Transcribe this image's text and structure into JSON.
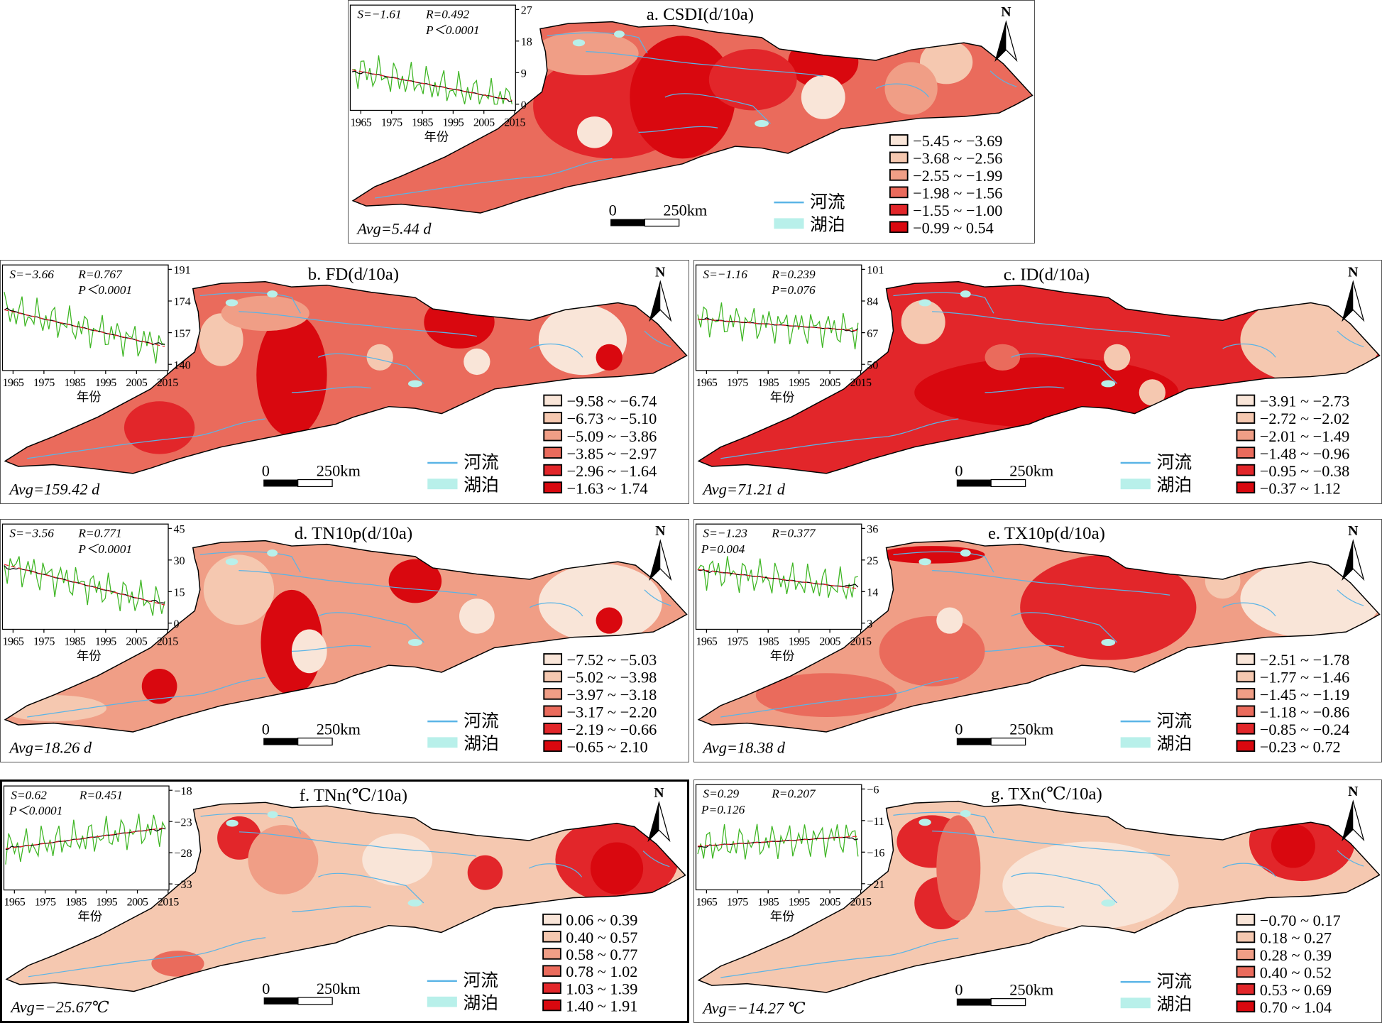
{
  "common": {
    "x_ticks": [
      "1965",
      "1975",
      "1985",
      "1995",
      "2005",
      "2015"
    ],
    "x_label": "年份",
    "north_label": "N",
    "scale_zero": "0",
    "scale_label": "250km",
    "river_label": "河流",
    "lake_label": "湖泊",
    "colors": [
      "#f9e5d8",
      "#f5c8b0",
      "#f09e86",
      "#ea6b5c",
      "#e2262a",
      "#d9080f"
    ],
    "river_color": "#5ab4e6",
    "lake_color": "#b8f0ea"
  },
  "panels": [
    {
      "id": "a",
      "title": "a.  CSDI(d/10a)",
      "S": "S=−1.61",
      "R": "R=0.492",
      "P": "P＜0.0001",
      "y_ticks": [
        "27",
        "18",
        "9",
        "0"
      ],
      "y_range": [
        0,
        27
      ],
      "series_mean": 5.44,
      "trend_per_decade": -1.61,
      "legend": [
        "−5.45 ~ −3.69",
        "−3.68 ~ −2.56",
        "−2.55 ~ −1.99",
        "−1.98 ~ −1.56",
        "−1.55 ~ −1.00",
        "−0.99 ~ 0.54"
      ],
      "avg": "Avg=5.44 d"
    },
    {
      "id": "b",
      "title": "b.  FD(d/10a)",
      "S": "S=−3.66",
      "R": "R=0.767",
      "P": "P＜0.0001",
      "y_ticks": [
        "191",
        "174",
        "157",
        "140"
      ],
      "y_range": [
        140,
        191
      ],
      "series_mean": 159.42,
      "trend_per_decade": -3.66,
      "legend": [
        "−9.58 ~ −6.74",
        "−6.73 ~ −5.10",
        "−5.09 ~ −3.86",
        "−3.85 ~ −2.97",
        "−2.96 ~ −1.64",
        "−1.63 ~ 1.74"
      ],
      "avg": "Avg=159.42 d"
    },
    {
      "id": "c",
      "title": "c.  ID(d/10a)",
      "S": "S=−1.16",
      "R": "R=0.239",
      "P": "P=0.076",
      "y_ticks": [
        "101",
        "84",
        "67",
        "50"
      ],
      "y_range": [
        50,
        101
      ],
      "series_mean": 71.21,
      "trend_per_decade": -1.16,
      "legend": [
        "−3.91 ~ −2.73",
        "−2.72 ~ −2.02",
        "−2.01 ~ −1.49",
        "−1.48 ~ −0.96",
        "−0.95 ~ −0.38",
        "−0.37 ~ 1.12"
      ],
      "avg": "Avg=71.21 d"
    },
    {
      "id": "d",
      "title": "d.  TN10p(d/10a)",
      "S": "S=−3.56",
      "R": "R=0.771",
      "P": "P＜0.0001",
      "y_ticks": [
        "45",
        "30",
        "15",
        "0"
      ],
      "y_range": [
        0,
        45
      ],
      "series_mean": 18.26,
      "trend_per_decade": -3.56,
      "legend": [
        "−7.52 ~ −5.03",
        "−5.02 ~ −3.98",
        "−3.97 ~ −3.18",
        "−3.17 ~ −2.20",
        "−2.19 ~ −0.66",
        "−0.65 ~ 2.10"
      ],
      "avg": "Avg=18.26 d"
    },
    {
      "id": "e",
      "title": "e.  TX10p(d/10a)",
      "S": "S=−1.23",
      "R": "R=0.377",
      "P": "P=0.004",
      "y_ticks": [
        "36",
        "25",
        "14",
        "3"
      ],
      "y_range": [
        3,
        36
      ],
      "series_mean": 18.38,
      "trend_per_decade": -1.23,
      "legend": [
        "−2.51 ~ −1.78",
        "−1.77 ~ −1.46",
        "−1.45 ~ −1.19",
        "−1.18 ~ −0.86",
        "−0.85 ~ −0.24",
        "−0.23 ~ 0.72"
      ],
      "avg": "Avg=18.38 d"
    },
    {
      "id": "f",
      "title": "f.  TNn(℃/10a)",
      "S": "S=0.62",
      "R": "R=0.451",
      "P": "P＜0.0001",
      "y_ticks": [
        "−18",
        "−23",
        "−28",
        "−33"
      ],
      "y_range": [
        -33,
        -18
      ],
      "series_mean": -25.67,
      "trend_per_decade": 0.62,
      "legend": [
        "0.06 ~ 0.39",
        "0.40 ~ 0.57",
        "0.58 ~ 0.77",
        "0.78 ~ 1.02",
        "1.03 ~ 1.39",
        "1.40 ~ 1.91"
      ],
      "avg": "Avg=−25.67℃"
    },
    {
      "id": "g",
      "title": "g.  TXn(℃/10a)",
      "S": "S=0.29",
      "R": "R=0.207",
      "P": "P=0.126",
      "y_ticks": [
        "−6",
        "−11",
        "−16",
        "−21"
      ],
      "y_range": [
        -21,
        -6
      ],
      "series_mean": -14.27,
      "trend_per_decade": 0.29,
      "legend": [
        "−0.70 ~ 0.17",
        "0.18 ~ 0.27",
        "0.28 ~ 0.39",
        "0.40 ~ 0.52",
        "0.53 ~ 0.69",
        "0.70 ~ 1.04"
      ],
      "avg": "Avg=−14.27 ℃"
    }
  ]
}
